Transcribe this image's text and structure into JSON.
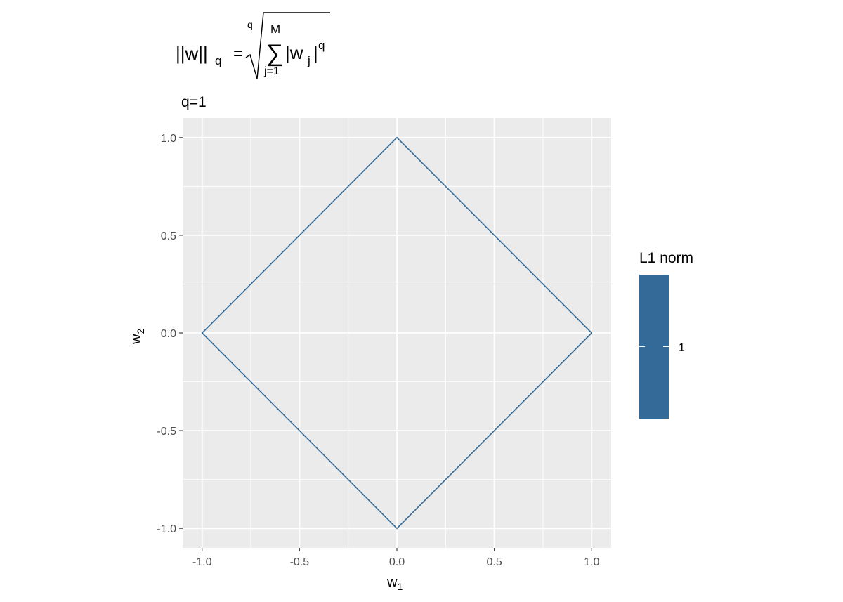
{
  "chart_data": {
    "type": "line",
    "title": {
      "formula_lhs": "||w||",
      "formula_lhs_sub": "q",
      "formula_equals": "=",
      "root_index": "q",
      "sum_upper": "M",
      "sum_symbol": "∑",
      "sum_lower": "j=1",
      "summand": "|w",
      "summand_sub": "j",
      "summand_close": "|",
      "summand_power": "q"
    },
    "subtitle": "q=1",
    "xlabel_base": "w",
    "xlabel_sub": "1",
    "ylabel_base": "w",
    "ylabel_sub": "2",
    "xlim": [
      -1.1,
      1.1
    ],
    "ylim": [
      -1.1,
      1.1
    ],
    "x_ticks": [
      -1.0,
      -0.5,
      0.0,
      0.5,
      1.0
    ],
    "x_tick_labels": [
      "-1.0",
      "-0.5",
      "0.0",
      "0.5",
      "1.0"
    ],
    "y_ticks": [
      -1.0,
      -0.5,
      0.0,
      0.5,
      1.0
    ],
    "y_tick_labels": [
      "-1.0",
      "-0.5",
      "0.0",
      "0.5",
      "1.0"
    ],
    "grid": true,
    "series": [
      {
        "x": [
          1.0,
          0.0,
          -1.0,
          0.0,
          1.0
        ],
        "y": [
          0.0,
          1.0,
          0.0,
          -1.0,
          0.0
        ],
        "color": "#336a98"
      }
    ],
    "legend": {
      "title": "L1 norm",
      "placement": "right",
      "range": [
        0.5,
        1.5
      ],
      "tick_value": 1,
      "tick_label": "1",
      "color": "#336a98"
    },
    "panel_background": "#ebebeb",
    "grid_color": "#ffffff"
  }
}
